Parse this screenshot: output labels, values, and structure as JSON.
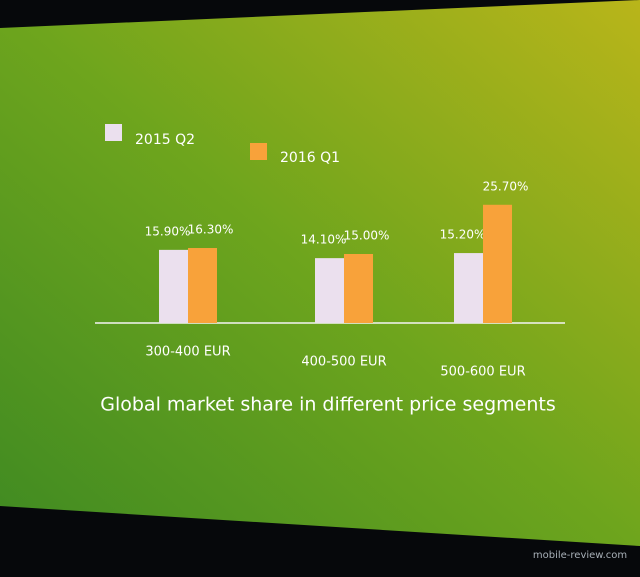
{
  "chart_data": {
    "type": "bar",
    "title": "Global market share in different price segments",
    "categories": [
      "300-400 EUR",
      "400-500 EUR",
      "500-600 EUR"
    ],
    "series": [
      {
        "name": "2015 Q2",
        "color": "#ebe0ee",
        "values": [
          15.9,
          14.1,
          15.2
        ],
        "value_labels": [
          "15.90%",
          "14.10%",
          "15.20%"
        ]
      },
      {
        "name": "2016 Q1",
        "color": "#f8a23a",
        "values": [
          16.3,
          15.0,
          25.7
        ],
        "value_labels": [
          "16.30%",
          "15.00%",
          "25.70%"
        ]
      }
    ]
  },
  "watermark": "mobile-review.com"
}
